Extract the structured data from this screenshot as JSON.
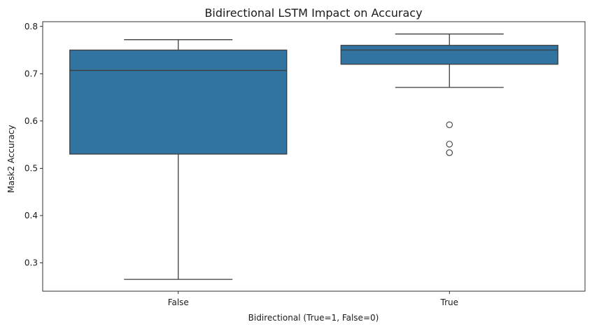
{
  "chart_data": {
    "type": "box",
    "title": "Bidirectional LSTM Impact on Accuracy",
    "xlabel": "Bidirectional (True=1, False=0)",
    "ylabel": "Mask2 Accuracy",
    "categories": [
      "False",
      "True"
    ],
    "ylim": [
      0.24,
      0.81
    ],
    "yticks": [
      0.3,
      0.4,
      0.5,
      0.6,
      0.7,
      0.8
    ],
    "ytick_labels": [
      "0.3",
      "0.4",
      "0.5",
      "0.6",
      "0.7",
      "0.8"
    ],
    "grid": false,
    "legend": "none",
    "box_color": "#3274a1",
    "line_color": "#3d3d3d",
    "boxes": [
      {
        "category": "False",
        "whisker_low": 0.265,
        "q1": 0.53,
        "median": 0.707,
        "q3": 0.75,
        "whisker_high": 0.772,
        "outliers": []
      },
      {
        "category": "True",
        "whisker_low": 0.671,
        "q1": 0.72,
        "median": 0.75,
        "q3": 0.76,
        "whisker_high": 0.784,
        "outliers": [
          0.592,
          0.551,
          0.533
        ]
      }
    ]
  }
}
